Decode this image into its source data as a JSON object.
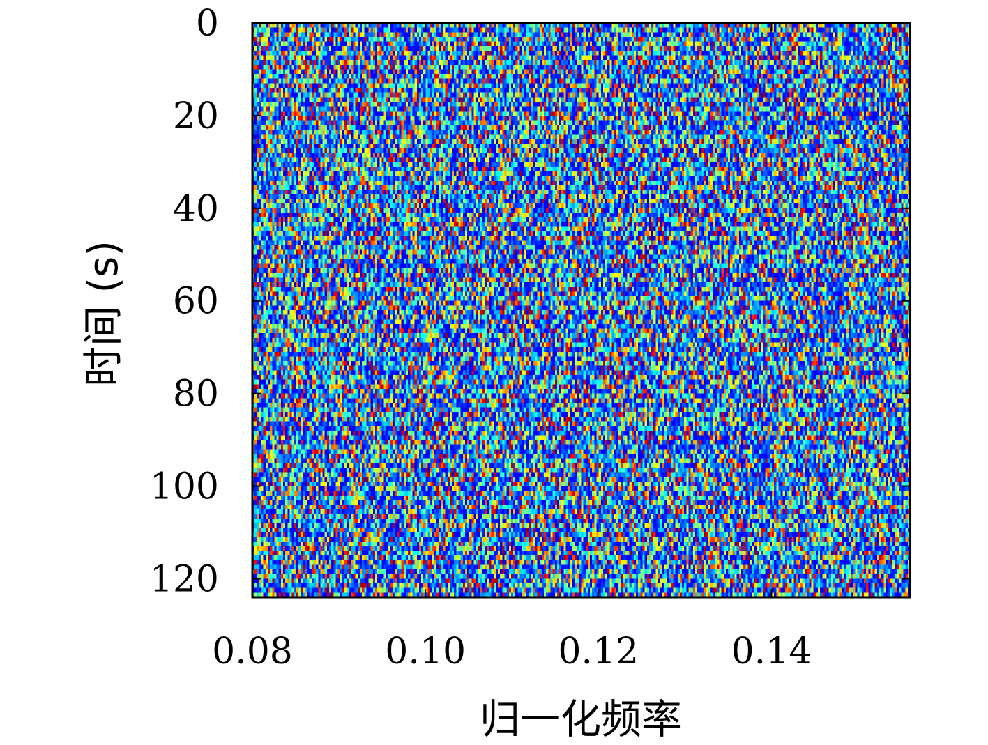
{
  "chart_data": {
    "type": "heatmap",
    "xlabel": "归一化频率",
    "ylabel": "时间 (s)",
    "xlim": [
      0.08,
      0.156
    ],
    "ylim": [
      0,
      124
    ],
    "y_direction": "top-to-bottom",
    "x_ticks": [
      "0.08",
      "0.10",
      "0.12",
      "0.14"
    ],
    "y_ticks": [
      "0",
      "20",
      "40",
      "60",
      "80",
      "100",
      "120"
    ],
    "x_tick_values": [
      0.08,
      0.1,
      0.12,
      0.14
    ],
    "y_tick_values": [
      0,
      20,
      40,
      60,
      80,
      100,
      120
    ],
    "colormap": "jet",
    "colormap_colors": [
      "#00008f",
      "#0000ff",
      "#0080ff",
      "#00ffff",
      "#80ff80",
      "#ffff00",
      "#ff8000",
      "#ff0000",
      "#800000"
    ],
    "value_range": [
      0,
      1
    ],
    "grid": false,
    "legend": "none",
    "rows": 124,
    "cols": 300,
    "description_of_values": "noise-like random intensities, mostly low (blue/cyan) with sparse high values (yellow/red)"
  }
}
